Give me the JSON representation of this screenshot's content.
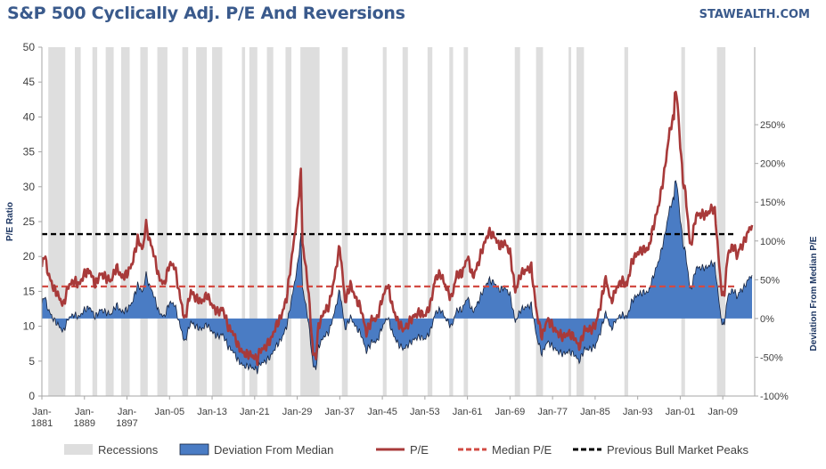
{
  "header": {
    "title": "S&P 500 Cyclically Adj. P/E And Reversions",
    "brand": "STAWEALTH.COM"
  },
  "chart_data": {
    "type": "line",
    "title": "S&P 500 Cyclically Adj. P/E And Reversions",
    "ylabel": "P/E Ratio",
    "ylabel_right": "Deviation  From Median  P/E",
    "ylim": [
      0,
      50
    ],
    "y_ticks": [
      0,
      5,
      10,
      15,
      20,
      25,
      30,
      35,
      40,
      45,
      50
    ],
    "ylim_right": [
      -100,
      350
    ],
    "y_right_ticks": [
      -100,
      -50,
      0,
      50,
      100,
      150,
      200,
      250
    ],
    "xlim": [
      1881,
      2015
    ],
    "x_ticks": [
      {
        "year": 1881,
        "label": [
          "Jan-",
          "1881"
        ]
      },
      {
        "year": 1889,
        "label": [
          "Jan-",
          "1889"
        ]
      },
      {
        "year": 1897,
        "label": [
          "Jan-",
          "1897"
        ]
      },
      {
        "year": 1905,
        "label": [
          "Jan-05"
        ]
      },
      {
        "year": 1913,
        "label": [
          "Jan-13"
        ]
      },
      {
        "year": 1921,
        "label": [
          "Jan-21"
        ]
      },
      {
        "year": 1929,
        "label": [
          "Jan-29"
        ]
      },
      {
        "year": 1937,
        "label": [
          "Jan-37"
        ]
      },
      {
        "year": 1945,
        "label": [
          "Jan-45"
        ]
      },
      {
        "year": 1953,
        "label": [
          "Jan-53"
        ]
      },
      {
        "year": 1961,
        "label": [
          "Jan-61"
        ]
      },
      {
        "year": 1969,
        "label": [
          "Jan-69"
        ]
      },
      {
        "year": 1977,
        "label": [
          "Jan-77"
        ]
      },
      {
        "year": 1985,
        "label": [
          "Jan-85"
        ]
      },
      {
        "year": 1993,
        "label": [
          "Jan-93"
        ]
      },
      {
        "year": 2001,
        "label": [
          "Jan-01"
        ]
      },
      {
        "year": 2009,
        "label": [
          "Jan-09"
        ]
      }
    ],
    "median_pe": 15.7,
    "previous_bull_market_peaks": 23.2,
    "recessions": [
      [
        1882.2,
        1885.4
      ],
      [
        1887.2,
        1888.3
      ],
      [
        1890.5,
        1891.4
      ],
      [
        1893.0,
        1894.5
      ],
      [
        1895.9,
        1897.5
      ],
      [
        1899.5,
        1900.9
      ],
      [
        1902.7,
        1904.6
      ],
      [
        1907.4,
        1908.5
      ],
      [
        1910.0,
        1912.0
      ],
      [
        1913.0,
        1914.9
      ],
      [
        1918.6,
        1919.2
      ],
      [
        1920.0,
        1921.5
      ],
      [
        1923.3,
        1924.5
      ],
      [
        1926.8,
        1927.9
      ],
      [
        1929.6,
        1933.2
      ],
      [
        1937.4,
        1938.5
      ],
      [
        1945.1,
        1945.8
      ],
      [
        1948.8,
        1949.8
      ],
      [
        1953.5,
        1954.4
      ],
      [
        1957.6,
        1958.3
      ],
      [
        1960.3,
        1961.1
      ],
      [
        1969.9,
        1970.9
      ],
      [
        1973.9,
        1975.2
      ],
      [
        1980.0,
        1980.5
      ],
      [
        1981.5,
        1982.9
      ],
      [
        1990.5,
        1991.2
      ],
      [
        2001.2,
        2001.9
      ],
      [
        2007.9,
        2009.5
      ]
    ],
    "series": [
      {
        "name": "P/E",
        "color": "#a83a3a",
        "points": [
          [
            1881,
            18.5
          ],
          [
            1881.5,
            20.5
          ],
          [
            1882,
            18.0
          ],
          [
            1883,
            15.8
          ],
          [
            1884,
            14.5
          ],
          [
            1885,
            13.0
          ],
          [
            1886,
            15.8
          ],
          [
            1887,
            16.5
          ],
          [
            1888,
            16.0
          ],
          [
            1889,
            17.5
          ],
          [
            1890,
            18.0
          ],
          [
            1891,
            16.0
          ],
          [
            1892,
            17.5
          ],
          [
            1893,
            17.0
          ],
          [
            1894,
            16.5
          ],
          [
            1895,
            18.5
          ],
          [
            1896,
            17.0
          ],
          [
            1897,
            17.5
          ],
          [
            1898,
            19.0
          ],
          [
            1899,
            22.5
          ],
          [
            1900,
            21.0
          ],
          [
            1900.6,
            25.0
          ],
          [
            1901,
            23.0
          ],
          [
            1902,
            20.5
          ],
          [
            1903,
            17.0
          ],
          [
            1904,
            16.0
          ],
          [
            1905,
            19.0
          ],
          [
            1906,
            18.5
          ],
          [
            1907,
            14.0
          ],
          [
            1907.9,
            11.0
          ],
          [
            1908,
            11.5
          ],
          [
            1909,
            15.0
          ],
          [
            1910,
            14.0
          ],
          [
            1911,
            13.5
          ],
          [
            1912,
            14.5
          ],
          [
            1913,
            13.0
          ],
          [
            1914,
            12.0
          ],
          [
            1915,
            12.5
          ],
          [
            1916,
            10.0
          ],
          [
            1917,
            9.0
          ],
          [
            1918,
            7.0
          ],
          [
            1919,
            6.0
          ],
          [
            1920,
            6.0
          ],
          [
            1921,
            5.5
          ],
          [
            1921.5,
            5.2
          ],
          [
            1922,
            6.5
          ],
          [
            1923,
            7.0
          ],
          [
            1924,
            8.0
          ],
          [
            1925,
            10.0
          ],
          [
            1926,
            11.5
          ],
          [
            1927,
            14.0
          ],
          [
            1928,
            20.0
          ],
          [
            1929,
            26.0
          ],
          [
            1929.7,
            32.5
          ],
          [
            1930,
            22.0
          ],
          [
            1931,
            16.0
          ],
          [
            1932,
            6.0
          ],
          [
            1932.5,
            5.6
          ],
          [
            1933,
            10.0
          ],
          [
            1934,
            12.0
          ],
          [
            1935,
            13.0
          ],
          [
            1936,
            17.0
          ],
          [
            1937,
            21.5
          ],
          [
            1938,
            13.5
          ],
          [
            1939,
            16.0
          ],
          [
            1940,
            14.0
          ],
          [
            1941,
            12.5
          ],
          [
            1942,
            9.0
          ],
          [
            1943,
            11.0
          ],
          [
            1944,
            11.0
          ],
          [
            1945,
            14.0
          ],
          [
            1946,
            16.0
          ],
          [
            1947,
            12.5
          ],
          [
            1948,
            10.5
          ],
          [
            1949,
            9.5
          ],
          [
            1950,
            10.5
          ],
          [
            1951,
            11.5
          ],
          [
            1952,
            12.0
          ],
          [
            1953,
            11.5
          ],
          [
            1954,
            13.0
          ],
          [
            1955,
            17.0
          ],
          [
            1956,
            17.5
          ],
          [
            1957,
            15.5
          ],
          [
            1958,
            14.0
          ],
          [
            1959,
            17.5
          ],
          [
            1960,
            17.5
          ],
          [
            1961,
            20.0
          ],
          [
            1962,
            17.0
          ],
          [
            1963,
            19.0
          ],
          [
            1964,
            21.5
          ],
          [
            1965,
            23.5
          ],
          [
            1966,
            23.0
          ],
          [
            1967,
            21.5
          ],
          [
            1968,
            22.0
          ],
          [
            1969,
            20.5
          ],
          [
            1970,
            15.0
          ],
          [
            1971,
            17.5
          ],
          [
            1972,
            18.0
          ],
          [
            1973,
            18.5
          ],
          [
            1974,
            12.0
          ],
          [
            1975,
            8.5
          ],
          [
            1976,
            11.0
          ],
          [
            1977,
            10.0
          ],
          [
            1978,
            9.0
          ],
          [
            1979,
            8.5
          ],
          [
            1980,
            9.0
          ],
          [
            1981,
            8.5
          ],
          [
            1982,
            7.0
          ],
          [
            1983,
            9.5
          ],
          [
            1984,
            9.5
          ],
          [
            1985,
            10.0
          ],
          [
            1986,
            13.0
          ],
          [
            1987,
            17.0
          ],
          [
            1987.8,
            14.0
          ],
          [
            1988,
            13.5
          ],
          [
            1989,
            15.5
          ],
          [
            1990,
            16.5
          ],
          [
            1991,
            16.0
          ],
          [
            1992,
            19.5
          ],
          [
            1993,
            20.5
          ],
          [
            1994,
            21.0
          ],
          [
            1995,
            21.0
          ],
          [
            1996,
            24.5
          ],
          [
            1997,
            27.5
          ],
          [
            1998,
            32.0
          ],
          [
            1999,
            38.0
          ],
          [
            1999.8,
            40.0
          ],
          [
            2000,
            44.0
          ],
          [
            2000.5,
            42.0
          ],
          [
            2001,
            36.0
          ],
          [
            2001.5,
            31.0
          ],
          [
            2002,
            29.0
          ],
          [
            2002.8,
            22.0
          ],
          [
            2003,
            21.5
          ],
          [
            2004,
            26.0
          ],
          [
            2005,
            26.0
          ],
          [
            2006,
            26.0
          ],
          [
            2007,
            27.0
          ],
          [
            2007.5,
            26.5
          ],
          [
            2008,
            22.0
          ],
          [
            2008.5,
            17.0
          ],
          [
            2009,
            14.0
          ],
          [
            2009.3,
            15.0
          ],
          [
            2010,
            20.5
          ],
          [
            2011,
            21.5
          ],
          [
            2011.8,
            20.0
          ],
          [
            2012,
            21.0
          ],
          [
            2013,
            22.0
          ],
          [
            2014,
            24.0
          ],
          [
            2014.5,
            24.5
          ]
        ]
      },
      {
        "name": "Deviation From Median",
        "color": "#4a7cc4",
        "derived_from": "P/E",
        "formula": "(P/E - median) / median * 100"
      },
      {
        "name": "Median P/E",
        "color": "#d24b43",
        "style": "dashed",
        "value": 15.7
      },
      {
        "name": "Previous Bull Market Peaks",
        "color": "#000000",
        "style": "dashed",
        "value": 23.2
      }
    ],
    "legend": {
      "position": "bottom",
      "items": [
        {
          "label": "Recessions",
          "kind": "rect",
          "color": "#dedede"
        },
        {
          "label": "Deviation From Median",
          "kind": "area",
          "color": "#4a7cc4"
        },
        {
          "label": "P/E",
          "kind": "line",
          "color": "#a83a3a"
        },
        {
          "label": "Median P/E",
          "kind": "dash",
          "color": "#d24b43"
        },
        {
          "label": "Previous Bull Market Peaks",
          "kind": "dash",
          "color": "#000000"
        }
      ]
    }
  }
}
